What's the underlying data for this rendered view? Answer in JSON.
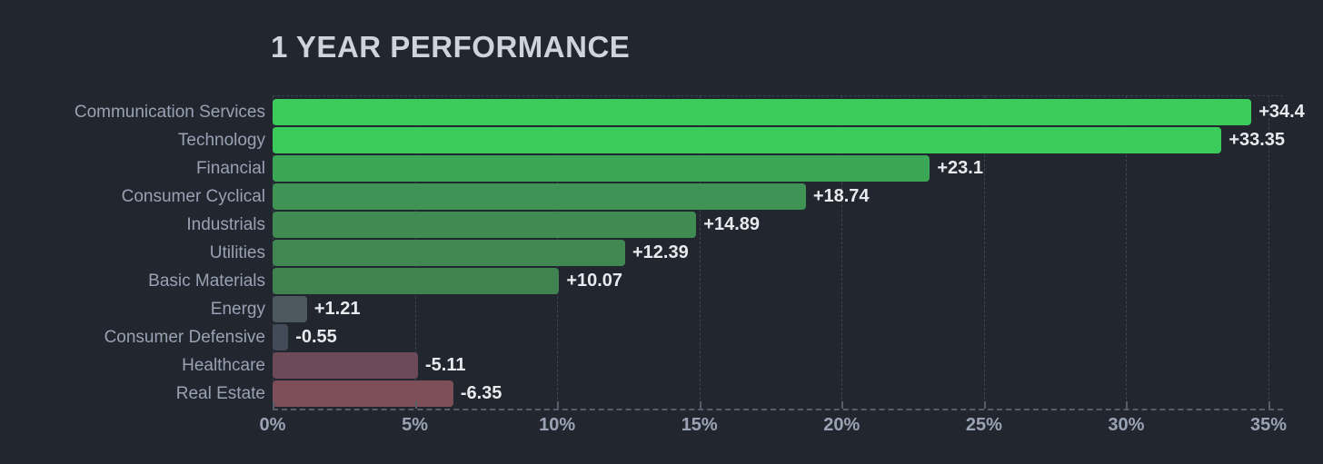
{
  "title": "1 YEAR PERFORMANCE",
  "chart_data": {
    "type": "bar",
    "orientation": "horizontal",
    "title": "1 YEAR PERFORMANCE",
    "categories": [
      "Communication Services",
      "Technology",
      "Financial",
      "Consumer Cyclical",
      "Industrials",
      "Utilities",
      "Basic Materials",
      "Energy",
      "Consumer Defensive",
      "Healthcare",
      "Real Estate"
    ],
    "values": [
      34.4,
      33.35,
      23.1,
      18.74,
      14.89,
      12.39,
      10.07,
      1.21,
      -0.55,
      -5.11,
      -6.35
    ],
    "value_labels": [
      "+34.4",
      "+33.35",
      "+23.1",
      "+18.74",
      "+14.89",
      "+12.39",
      "+10.07",
      "+1.21",
      "-0.55",
      "-5.11",
      "-6.35"
    ],
    "bar_colors": [
      "#3bcb5b",
      "#3bcb5b",
      "#3aa656",
      "#3f9354",
      "#3f8b52",
      "#408751",
      "#418350",
      "#4c5a60",
      "#444b58",
      "#6d4a58",
      "#7e4f58"
    ],
    "xlim": [
      0,
      35
    ],
    "x_ticks": [
      "0%",
      "5%",
      "10%",
      "15%",
      "20%",
      "25%",
      "30%",
      "35%"
    ],
    "x_tick_values": [
      0,
      5,
      10,
      15,
      20,
      25,
      30,
      35
    ],
    "grid": "vertical-dashed",
    "legend": "none",
    "colors": {
      "background": "#22262f",
      "title": "#ced3dc",
      "category_label": "#99a2b3",
      "value_label": "#e8eaee",
      "gridline": "#3d4452",
      "axis": "#565e6b"
    }
  }
}
